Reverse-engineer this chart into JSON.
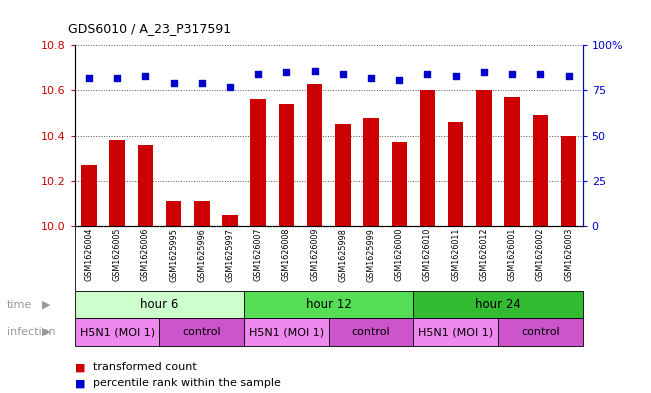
{
  "title": "GDS6010 / A_23_P317591",
  "samples": [
    "GSM1626004",
    "GSM1626005",
    "GSM1626006",
    "GSM1625995",
    "GSM1625996",
    "GSM1625997",
    "GSM1626007",
    "GSM1626008",
    "GSM1626009",
    "GSM1625998",
    "GSM1625999",
    "GSM1626000",
    "GSM1626010",
    "GSM1626011",
    "GSM1626012",
    "GSM1626001",
    "GSM1626002",
    "GSM1626003"
  ],
  "bar_values": [
    10.27,
    10.38,
    10.36,
    10.11,
    10.11,
    10.05,
    10.56,
    10.54,
    10.63,
    10.45,
    10.48,
    10.37,
    10.6,
    10.46,
    10.6,
    10.57,
    10.49,
    10.4
  ],
  "dot_values": [
    82,
    82,
    83,
    79,
    79,
    77,
    84,
    85,
    86,
    84,
    82,
    81,
    84,
    83,
    85,
    84,
    84,
    83
  ],
  "bar_color": "#cc0000",
  "dot_color": "#0000cc",
  "ylim_left": [
    10.0,
    10.8
  ],
  "ylim_right": [
    0,
    100
  ],
  "yticks_left": [
    10.0,
    10.2,
    10.4,
    10.6,
    10.8
  ],
  "yticks_right": [
    0,
    25,
    50,
    75,
    100
  ],
  "ytick_labels_right": [
    "0",
    "25",
    "50",
    "75",
    "100%"
  ],
  "time_groups": [
    {
      "label": "hour 6",
      "start": 0,
      "end": 6,
      "color": "#ccffcc"
    },
    {
      "label": "hour 12",
      "start": 6,
      "end": 12,
      "color": "#55dd55"
    },
    {
      "label": "hour 24",
      "start": 12,
      "end": 18,
      "color": "#33bb33"
    }
  ],
  "infection_groups": [
    {
      "label": "H5N1 (MOI 1)",
      "start": 0,
      "end": 3,
      "color": "#ee88ee"
    },
    {
      "label": "control",
      "start": 3,
      "end": 6,
      "color": "#cc55cc"
    },
    {
      "label": "H5N1 (MOI 1)",
      "start": 6,
      "end": 9,
      "color": "#ee88ee"
    },
    {
      "label": "control",
      "start": 9,
      "end": 12,
      "color": "#cc55cc"
    },
    {
      "label": "H5N1 (MOI 1)",
      "start": 12,
      "end": 15,
      "color": "#ee88ee"
    },
    {
      "label": "control",
      "start": 15,
      "end": 18,
      "color": "#cc55cc"
    }
  ],
  "legend_items": [
    {
      "label": "transformed count",
      "color": "#cc0000",
      "marker": "s"
    },
    {
      "label": "percentile rank within the sample",
      "color": "#0000cc",
      "marker": "s"
    }
  ],
  "background_color": "#ffffff",
  "bar_width": 0.55,
  "xlabel_bg": "#cccccc",
  "left_label_color": "#999999"
}
